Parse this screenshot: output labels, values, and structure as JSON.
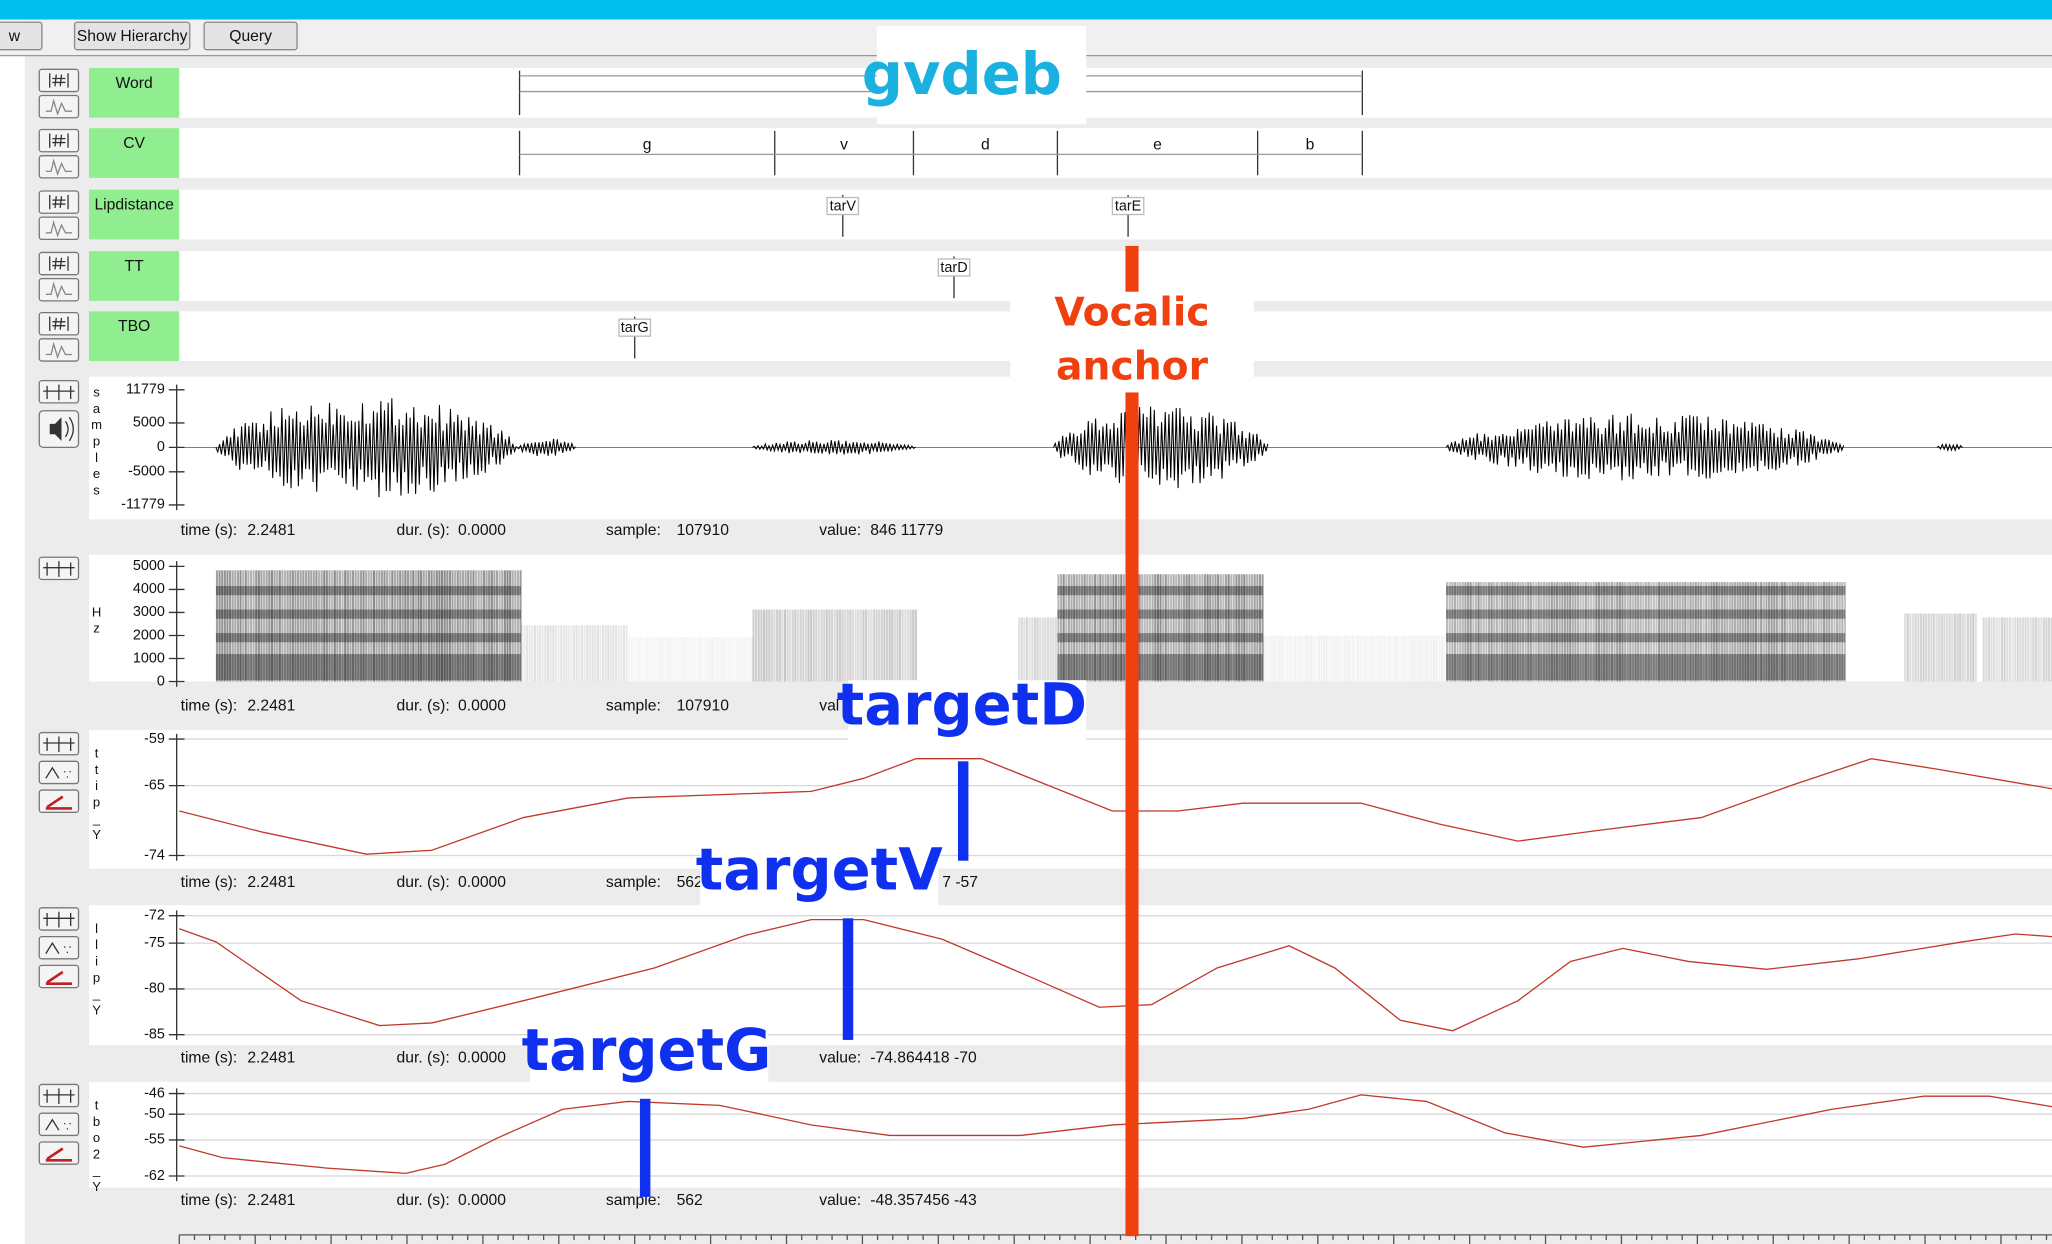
{
  "toolbar": {
    "buttons": [
      "w",
      "Show Hierarchy",
      "Query"
    ]
  },
  "tiers": [
    {
      "name": "Word"
    },
    {
      "name": "CV",
      "segments": [
        "g",
        "v",
        "d",
        "e",
        "b"
      ]
    },
    {
      "name": "Lipdistance",
      "points": [
        "tarV",
        "tarE"
      ]
    },
    {
      "name": "TT",
      "points": [
        "tarD"
      ]
    },
    {
      "name": "TBO",
      "points": [
        "tarG"
      ]
    }
  ],
  "waveform": {
    "axis_label": "samples",
    "yticks": [
      11779,
      5000,
      0,
      -5000,
      -11779
    ]
  },
  "spectrogram": {
    "axis_label": "Hz",
    "yticks": [
      5000,
      4000,
      3000,
      2000,
      1000,
      0
    ]
  },
  "tracks": [
    {
      "axis_label": "ttip_Y",
      "yticks": [
        -59,
        -65,
        -74
      ]
    },
    {
      "axis_label": "llip_Y",
      "yticks": [
        -72,
        -75,
        -80,
        -85
      ]
    },
    {
      "axis_label": "tbo2_Y",
      "yticks": [
        -46,
        -50,
        -55,
        -62
      ]
    }
  ],
  "status_lines": [
    {
      "time": {
        "label": "time (s):",
        "value": "2.2481"
      },
      "dur": {
        "label": "dur. (s):",
        "value": "0.0000"
      },
      "sample": {
        "label": "sample:",
        "value": "107910"
      },
      "value": {
        "label": "value:",
        "value": "846 11779"
      }
    },
    {
      "time": {
        "label": "time (s):",
        "value": "2.2481"
      },
      "dur": {
        "label": "dur. (s):",
        "value": "0.0000"
      },
      "sample": {
        "label": "sample:",
        "value": "107910"
      },
      "value": {
        "label": "val"
      }
    },
    {
      "time": {
        "label": "time (s):",
        "value": "2.2481"
      },
      "dur": {
        "label": "dur. (s):",
        "value": "0.0000"
      },
      "sample": {
        "label": "sample:",
        "value": "562"
      },
      "value": {
        "value": "7 -57"
      }
    },
    {
      "time": {
        "label": "time (s):",
        "value": "2.2481"
      },
      "dur": {
        "label": "dur. (s):",
        "value": "0.0000"
      },
      "value": {
        "label": "value:",
        "value": "-74.864418 -70"
      }
    },
    {
      "time": {
        "label": "time (s):",
        "value": "2.2481"
      },
      "dur": {
        "label": "dur. (s):",
        "value": "0.0000"
      },
      "sample": {
        "label": "sample:",
        "value": "562"
      },
      "value": {
        "label": "value:",
        "value": "-48.357456 -43"
      }
    }
  ],
  "annotations": {
    "word": "gvdeb",
    "anchor": [
      "Vocalic",
      "anchor"
    ],
    "target_d": "targetD",
    "target_v": "targetV",
    "target_g": "targetG"
  }
}
